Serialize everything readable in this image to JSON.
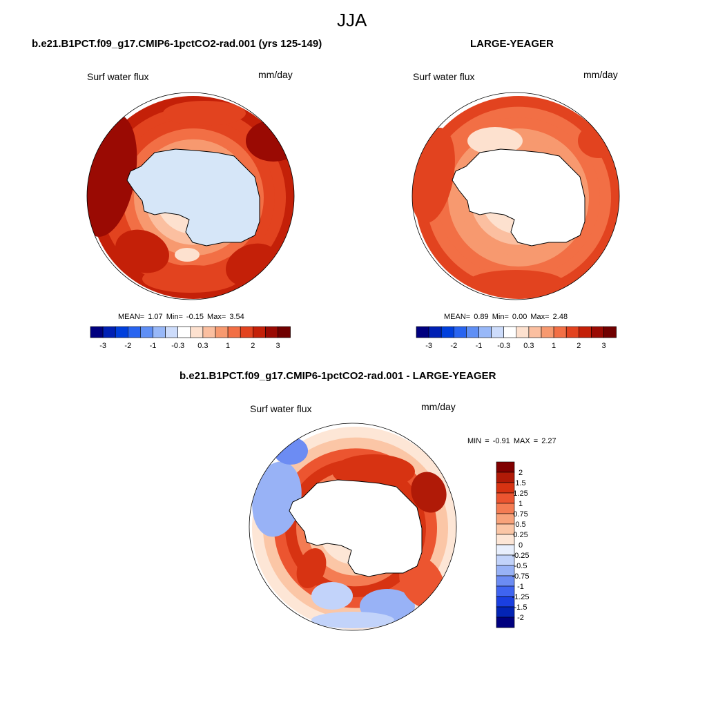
{
  "page": {
    "title": "JJA",
    "diff_title": "b.e21.B1PCT.f09_g17.CMIP6-1pctCO2-rad.001 - LARGE-YEAGER"
  },
  "palette": {
    "div": [
      "#00007f",
      "#0020b4",
      "#003fdc",
      "#2864f0",
      "#5f8ff5",
      "#98b8f8",
      "#cddcfb",
      "#ffffff",
      "#fde1cf",
      "#fbbfa0",
      "#f7996f",
      "#f26f45",
      "#e2431f",
      "#c42008",
      "#9a0a03",
      "#700000"
    ],
    "diff": [
      "#00007f",
      "#0324b5",
      "#1a3fe0",
      "#3f64f0",
      "#6c8cf3",
      "#98b2f6",
      "#c2d3fa",
      "#e8effd",
      "#fde6d6",
      "#fbc6a6",
      "#f8a37b",
      "#f47c53",
      "#ec5530",
      "#d73312",
      "#b01a07",
      "#800000"
    ]
  },
  "panels": [
    {
      "case": "b.e21.B1PCT.f09_g17.CMIP6-1pctCO2-rad.001 (yrs 125-149)",
      "variable": "Surf water flux",
      "units": "mm/day",
      "stats_text": "MEAN=   1.07  Min=  -0.15  Max=   3.54",
      "land_color": "#d6e6f8",
      "colorbar_labels": [
        "-3",
        "-2",
        "-1",
        "-0.3",
        "0.3",
        "1",
        "2",
        "3"
      ]
    },
    {
      "case": "LARGE-YEAGER",
      "variable": "Surf water flux",
      "units": "mm/day",
      "stats_text": "MEAN=   0.89  Min=   0.00  Max=   2.48",
      "land_color": "#ffffff",
      "colorbar_labels": [
        "-3",
        "-2",
        "-1",
        "-0.3",
        "0.3",
        "1",
        "2",
        "3"
      ]
    }
  ],
  "diff": {
    "variable": "Surf water flux",
    "units": "mm/day",
    "minmax_text": "MIN =  -0.91 MAX =   2.27",
    "colorbar_labels": [
      "2",
      "1.5",
      "1.25",
      "1",
      "0.75",
      "0.5",
      "0.25",
      "0",
      "-0.25",
      "-0.5",
      "-0.75",
      "-1",
      "-1.25",
      "-1.5",
      "-2"
    ]
  }
}
